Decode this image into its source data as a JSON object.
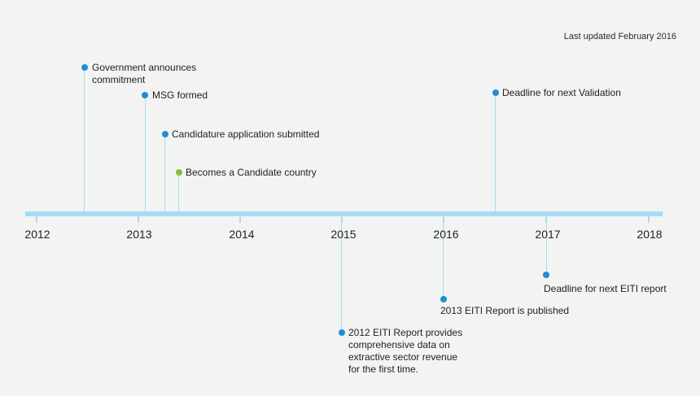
{
  "last_updated": "Last updated February 2016",
  "colors": {
    "axis": "#a6dcf3",
    "event": "#1f8fd0",
    "milestone": "#7bc142"
  },
  "years": [
    "2012",
    "2013",
    "2014",
    "2015",
    "2016",
    "2017",
    "2018"
  ],
  "events": [
    {
      "id": "government-announces",
      "text": "Government announces commitment",
      "color": "blue"
    },
    {
      "id": "msg-formed",
      "text": "MSG formed",
      "color": "blue"
    },
    {
      "id": "candidature-application",
      "text": "Candidature application submitted",
      "color": "blue"
    },
    {
      "id": "candidate-country",
      "text": "Becomes a Candidate country",
      "color": "green"
    },
    {
      "id": "validation-deadline",
      "text": "Deadline for next Validation",
      "color": "blue"
    },
    {
      "id": "eiti-2012-report",
      "text": "2012 EITI Report provides comprehensive data on extractive sector revenue for the first time.",
      "color": "blue"
    },
    {
      "id": "eiti-2013-report",
      "text": "2013 EITI Report is published",
      "color": "blue"
    },
    {
      "id": "eiti-report-deadline",
      "text": "Deadline for next EITI report",
      "color": "blue"
    }
  ]
}
